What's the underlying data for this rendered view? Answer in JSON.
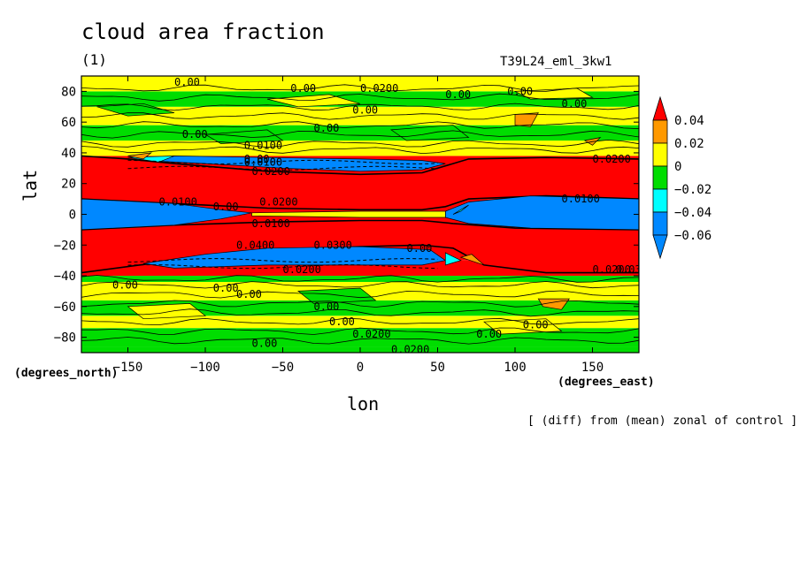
{
  "chart_data": {
    "type": "heatmap",
    "title": "cloud area fraction",
    "panel_label": "(1)",
    "run_name": "T39L24_eml_3kw1",
    "xlabel": "lon",
    "ylabel": "lat",
    "x_units": "(degrees_east)",
    "y_units": "(degrees_north)",
    "annotation": "[ (diff) from (mean) zonal of control ]",
    "xlim": [
      -180,
      180
    ],
    "ylim": [
      -90,
      90
    ],
    "x_ticks": [
      -150,
      -100,
      -50,
      0,
      50,
      100,
      150
    ],
    "y_ticks": [
      -80,
      -60,
      -40,
      -20,
      0,
      20,
      40,
      60,
      80
    ],
    "x_tick_labels": [
      "−150",
      "−100",
      "−50",
      "0",
      "50",
      "100",
      "150"
    ],
    "y_tick_labels": [
      "−80",
      "−60",
      "−40",
      "−20",
      "0",
      "20",
      "40",
      "60",
      "80"
    ],
    "colorbar": {
      "levels": [
        0.04,
        0.02,
        0,
        -0.02,
        -0.04,
        -0.06
      ],
      "labels": [
        "0.04",
        "0.02",
        "0",
        "−0.02",
        "−0.04",
        "−0.06"
      ],
      "colors": [
        "#ff0000",
        "#ff9900",
        "#ffff00",
        "#00dd00",
        "#00ffff",
        "#0088ff"
      ]
    },
    "bands": [
      {
        "lat_min": -90,
        "lat_max": -86,
        "class": "green"
      },
      {
        "lat_min": -86,
        "lat_max": -74,
        "class": "green"
      },
      {
        "lat_min": -74,
        "lat_max": -66,
        "class": "yellow"
      },
      {
        "lat_min": -66,
        "lat_max": -56,
        "class": "green"
      },
      {
        "lat_min": -56,
        "lat_max": -44,
        "class": "yellow"
      },
      {
        "lat_min": -44,
        "lat_max": -40,
        "class": "green"
      },
      {
        "lat_min": -40,
        "lat_max": -30,
        "class": "red"
      },
      {
        "lat_min": -30,
        "lat_max": -10,
        "class": "red"
      },
      {
        "lat_min": -10,
        "lat_max": 10,
        "class": "blue_east_west"
      },
      {
        "lat_min": 10,
        "lat_max": 38,
        "class": "red"
      },
      {
        "lat_min": 38,
        "lat_max": 48,
        "class": "yellow"
      },
      {
        "lat_min": 48,
        "lat_max": 58,
        "class": "green"
      },
      {
        "lat_min": 58,
        "lat_max": 70,
        "class": "yellow"
      },
      {
        "lat_min": 70,
        "lat_max": 80,
        "class": "green"
      },
      {
        "lat_min": 80,
        "lat_max": 90,
        "class": "yellow"
      }
    ],
    "contour_labels": [
      "0.00",
      "0.0200",
      "0.0100",
      "0.0400",
      "0.0300"
    ]
  }
}
